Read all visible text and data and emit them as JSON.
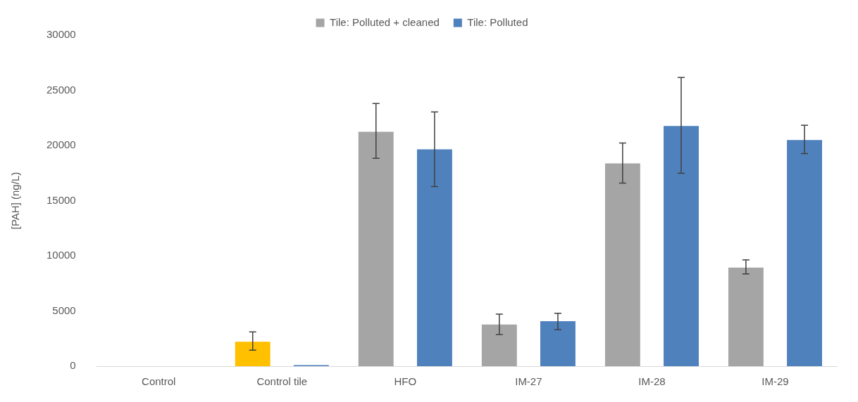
{
  "chart_data": {
    "type": "bar",
    "ylabel": "[PAH] (ng/L)",
    "categories": [
      "Control",
      "Control tile",
      "HFO",
      "IM-27",
      "IM-28",
      "IM-29"
    ],
    "series": [
      {
        "name": "Tile: Polluted + cleaned",
        "color": "#a5a5a5",
        "colors": [
          "#a5a5a5",
          "#ffc000",
          "#a5a5a5",
          "#a5a5a5",
          "#a5a5a5",
          "#a5a5a5"
        ],
        "values": [
          null,
          2210,
          21250,
          3770,
          18380,
          8930
        ],
        "errors": [
          null,
          [
            1450,
            3110
          ],
          [
            18830,
            23800
          ],
          [
            2870,
            4720
          ],
          [
            16590,
            20230
          ],
          [
            8360,
            9640
          ]
        ]
      },
      {
        "name": "Tile: Polluted",
        "color": "#4f81bd",
        "values": [
          null,
          100,
          19650,
          4080,
          21760,
          20490
        ],
        "errors": [
          null,
          null,
          [
            16270,
            23040
          ],
          [
            3320,
            4790
          ],
          [
            17490,
            26160
          ],
          [
            19270,
            21830
          ]
        ]
      }
    ],
    "ylim": [
      0,
      30000
    ],
    "yticks": [
      0,
      5000,
      10000,
      15000,
      20000,
      25000,
      30000
    ],
    "grid": false,
    "legend": "top"
  }
}
